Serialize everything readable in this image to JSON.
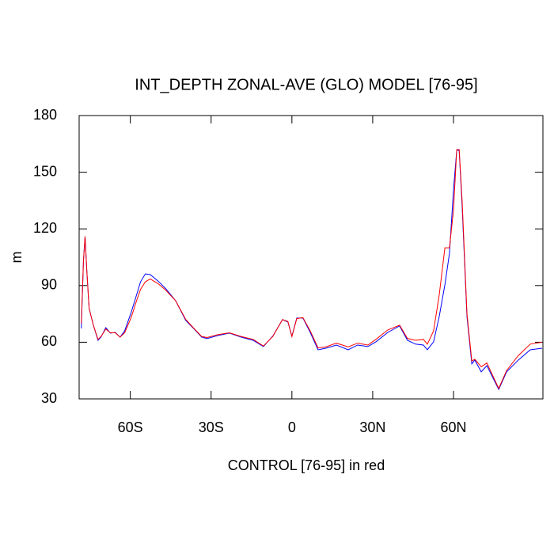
{
  "chart_data": {
    "type": "line",
    "title": "INT_DEPTH ZONAL-AVE (GLO) MODEL [76-95]",
    "x_label": "CONTROL [76-95] in red",
    "y_label": "m",
    "x": [
      -78.2,
      -77.4,
      -76.8,
      -76.2,
      -75.3,
      -73.8,
      -72,
      -70.9,
      -69.1,
      -67.4,
      -65.6,
      -63.8,
      -62.1,
      -59.7,
      -57.9,
      -56.2,
      -54.4,
      -52.6,
      -49.7,
      -46.8,
      -43.2,
      -39.4,
      -36.5,
      -33.5,
      -31.5,
      -27.6,
      -23.2,
      -18.8,
      -14.4,
      -10.6,
      -7.1,
      -3.5,
      -1.5,
      0,
      1.8,
      4.1,
      6.8,
      9.7,
      12.6,
      16.5,
      20.9,
      24.4,
      28.2,
      31.2,
      35.6,
      40,
      42.9,
      45.9,
      48.8,
      50.3,
      52.6,
      54.7,
      56.8,
      58.5,
      60,
      61.2,
      62.1,
      63.2,
      65,
      66.8,
      67.9,
      70.3,
      72.4,
      75,
      76.8,
      79.7,
      84.1,
      88.5,
      92.9
    ],
    "series": [
      {
        "name": "MODEL [76-95]",
        "color": "#0000ff",
        "values": [
          67.3,
          103,
          116,
          99,
          78,
          69.4,
          61,
          62.7,
          67.7,
          64.8,
          65.2,
          62.7,
          66,
          75.7,
          84,
          92,
          96.2,
          95.8,
          92.4,
          88.3,
          82,
          71.5,
          67.3,
          62.7,
          61.9,
          63.5,
          64.8,
          62.7,
          61,
          57.7,
          63.2,
          72,
          70.7,
          63.2,
          72.8,
          72.8,
          65.2,
          56,
          56.8,
          58.5,
          56,
          58.5,
          57.7,
          60.2,
          65.2,
          68.6,
          61,
          59,
          58.5,
          56,
          60.2,
          73.6,
          90.4,
          107,
          140.6,
          161.6,
          161.6,
          132.3,
          73.6,
          48.5,
          50.6,
          44.3,
          47.6,
          40.1,
          35,
          44.3,
          50.6,
          56,
          56.8
        ]
      },
      {
        "name": "CONTROL [76-95]",
        "color": "#ff0000",
        "values": [
          70,
          103,
          116,
          99,
          78,
          69.4,
          61.5,
          63,
          67,
          65,
          65,
          62.7,
          65,
          73,
          81,
          88,
          92,
          93.5,
          91,
          87.5,
          82,
          72,
          67.5,
          63,
          62.5,
          64,
          65,
          63,
          61.5,
          58,
          63,
          72,
          71,
          63,
          72.5,
          73,
          66,
          57,
          57.5,
          59.5,
          57.5,
          59.5,
          58.5,
          61.5,
          66.5,
          69,
          62,
          61,
          61.5,
          59,
          66,
          85,
          110,
          110,
          130,
          162,
          162,
          135,
          75,
          50,
          51,
          47,
          49,
          41,
          35.5,
          45,
          53,
          59,
          60
        ]
      }
    ],
    "xlim": [
      -79,
      93.2
    ],
    "ylim": [
      30,
      180
    ],
    "xticks": [
      {
        "value": -60,
        "label": "60S"
      },
      {
        "value": -30,
        "label": "30S"
      },
      0,
      {
        "value": 30,
        "label": "30N"
      },
      {
        "value": 60,
        "label": "60N"
      }
    ],
    "yticks": [
      30,
      60,
      90,
      120,
      150,
      180
    ]
  }
}
